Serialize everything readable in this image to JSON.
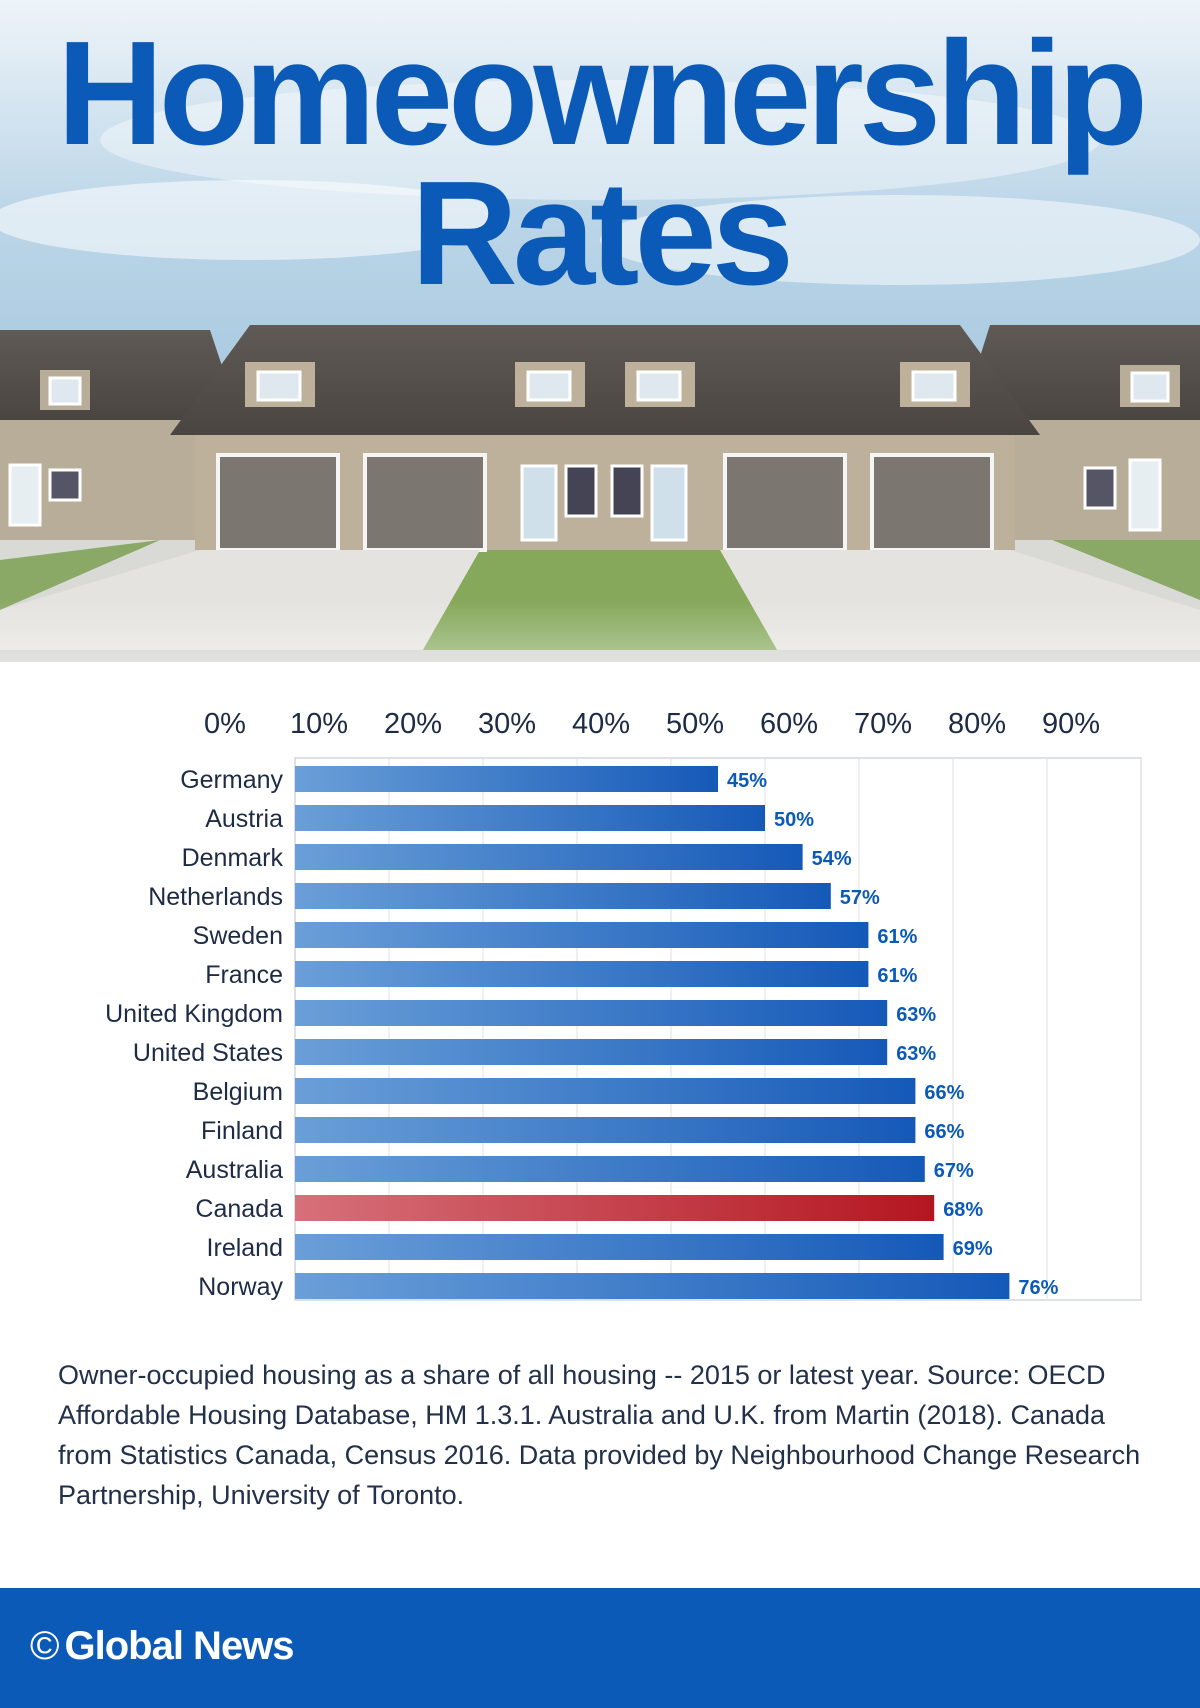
{
  "header": {
    "title_line1": "Homeownership",
    "title_line2": "Rates"
  },
  "hero_image": {
    "description_icon": "house-row-photo"
  },
  "colors": {
    "accent_blue": "#0b5ab7",
    "bar_blue_start": "#6a9fd8",
    "bar_blue_end": "#1559b8",
    "bar_red_start": "#d6707a",
    "bar_red_end": "#b41620",
    "label_dark": "#1e2b45"
  },
  "chart_data": {
    "type": "bar",
    "orientation": "horizontal",
    "categories": [
      "Germany",
      "Austria",
      "Denmark",
      "Netherlands",
      "Sweden",
      "France",
      "United Kingdom",
      "United States",
      "Belgium",
      "Finland",
      "Australia",
      "Canada",
      "Ireland",
      "Norway"
    ],
    "values": [
      45,
      50,
      54,
      57,
      61,
      61,
      63,
      63,
      66,
      66,
      67,
      68,
      69,
      76
    ],
    "value_labels": [
      "45%",
      "50%",
      "54%",
      "57%",
      "61%",
      "61%",
      "63%",
      "63%",
      "66%",
      "66%",
      "67%",
      "68%",
      "69%",
      "76%"
    ],
    "highlight": "Canada",
    "x_ticks": [
      "0%",
      "10%",
      "20%",
      "30%",
      "40%",
      "50%",
      "60%",
      "70%",
      "80%",
      "90%"
    ],
    "xlim": [
      0,
      90
    ],
    "grid": true,
    "axis_position": "top"
  },
  "note": "Owner-occupied housing as a share of all housing -- 2015 or latest year. Source: OECD Affordable Housing Database, HM 1.3.1. Australia and U.K. from Martin (2018). Canada from Statistics Canada, Census 2016. Data provided by Neighbourhood Change Research Partnership, University of Toronto.",
  "footer": {
    "copyright_symbol": "©",
    "brand": "Global News"
  }
}
